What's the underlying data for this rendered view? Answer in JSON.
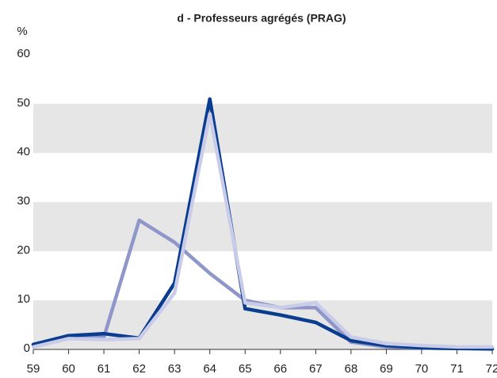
{
  "chart_data": {
    "type": "line",
    "title": "d - Professeurs agrégés (PRAG)",
    "y_label": "%",
    "x": [
      59,
      60,
      61,
      62,
      63,
      64,
      65,
      66,
      67,
      68,
      69,
      70,
      71,
      72
    ],
    "xlim": [
      59,
      72
    ],
    "xticks": [
      59,
      60,
      61,
      62,
      63,
      64,
      65,
      66,
      67,
      68,
      69,
      70,
      71,
      72
    ],
    "ylim": [
      0,
      60
    ],
    "yticks": [
      0,
      10,
      20,
      30,
      40,
      50,
      60
    ],
    "grid": "bands",
    "band_color": "#e6e6e6",
    "series": [
      {
        "color": "#8f96c9",
        "values": [
          1,
          2.5,
          2.5,
          26.3,
          21.8,
          15.5,
          10,
          8.5,
          8.5,
          1.5,
          0.5,
          0.3,
          0.2,
          0.2
        ]
      },
      {
        "color": "#0a3d8f",
        "values": [
          1,
          2.8,
          3.2,
          2.3,
          13.5,
          51,
          8.3,
          7,
          5.5,
          1.8,
          0.8,
          0.3,
          0.2,
          0.1
        ]
      },
      {
        "color": "#c9cce8",
        "values": [
          0.5,
          2.2,
          2.0,
          2.2,
          11.5,
          48,
          9.5,
          8.5,
          9.5,
          2.5,
          1.2,
          0.8,
          0.5,
          0.5
        ]
      }
    ]
  }
}
